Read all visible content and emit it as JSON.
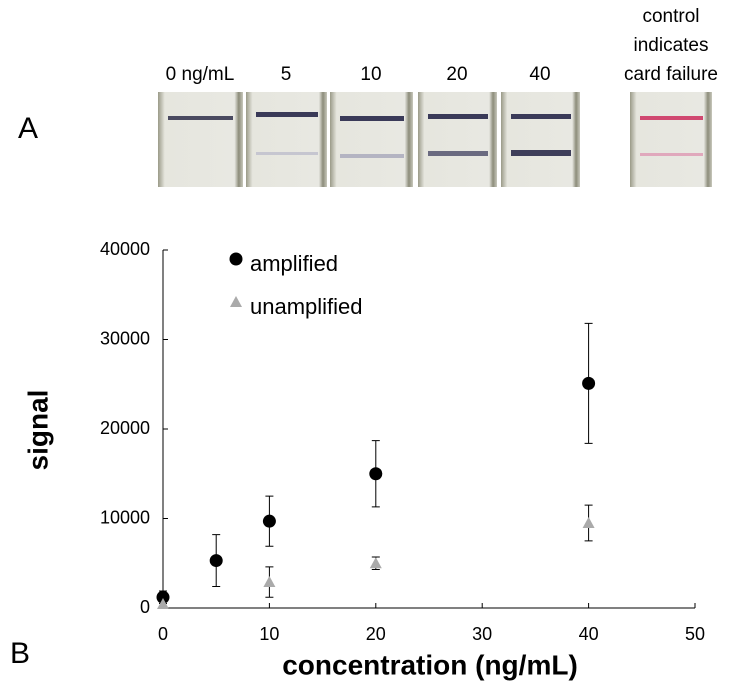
{
  "panel_a": {
    "label": "A",
    "strip_labels": [
      "0 ng/mL",
      "5",
      "10",
      "20",
      "40"
    ],
    "control_label": [
      "control",
      "indicates",
      "card failure"
    ]
  },
  "panel_b": {
    "label": "B"
  },
  "chart_data": {
    "type": "scatter",
    "x_label": "concentration (ng/mL)",
    "y_label": "signal",
    "xlim": [
      0,
      50
    ],
    "xticks": [
      0,
      10,
      20,
      30,
      40,
      50
    ],
    "ylim": [
      0,
      40000
    ],
    "yticks": [
      0,
      10000,
      20000,
      30000,
      40000
    ],
    "grid": false,
    "legend": "upper-left",
    "series": [
      {
        "name": "amplified",
        "color": "#000000",
        "marker": "circle",
        "x": [
          0,
          5,
          10,
          20,
          40
        ],
        "values": [
          1200,
          5300,
          9700,
          15000,
          25100
        ],
        "errors": [
          700,
          2900,
          2800,
          3700,
          6700
        ]
      },
      {
        "name": "unamplified",
        "color": "#aaaaaa",
        "marker": "triangle",
        "x": [
          0,
          10,
          20,
          40
        ],
        "values": [
          450,
          2900,
          5000,
          9500
        ],
        "errors": [
          300,
          1700,
          700,
          2000
        ]
      }
    ]
  }
}
